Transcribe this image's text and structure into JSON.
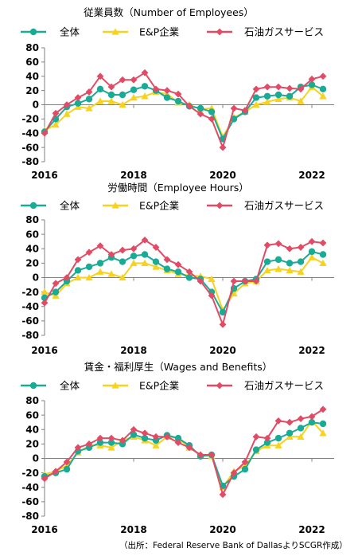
{
  "source_note": "（出所：Federal Reserve Bank of DallasよりSCGR作成）",
  "colors": {
    "all": "#1aab96",
    "ep": "#f7d21e",
    "oil": "#e24b65"
  },
  "chart_data": [
    {
      "type": "line",
      "title": "従業員数（Number of Employees）",
      "ylim": [
        -80,
        80
      ],
      "yticks": [
        "80",
        "60",
        "40",
        "20",
        "0",
        "-20",
        "-40",
        "-60",
        "-80"
      ],
      "xticks": [
        "2016",
        "2018",
        "2020",
        "2022"
      ],
      "x_range": [
        2016.0,
        2022.5
      ],
      "x": [
        2016.0,
        2016.25,
        2016.5,
        2016.75,
        2017.0,
        2017.25,
        2017.5,
        2017.75,
        2018.0,
        2018.25,
        2018.5,
        2018.75,
        2019.0,
        2019.25,
        2019.5,
        2019.75,
        2020.0,
        2020.25,
        2020.5,
        2020.75,
        2021.0,
        2021.25,
        2021.5,
        2021.75,
        2022.0,
        2022.25
      ],
      "series": [
        {
          "name": "全体",
          "key": "all",
          "marker": "circle",
          "values": [
            -38,
            -20,
            -3,
            2,
            8,
            22,
            14,
            14,
            21,
            26,
            20,
            10,
            5,
            -2,
            -5,
            -10,
            -48,
            -20,
            -10,
            10,
            12,
            14,
            12,
            25,
            28,
            22
          ]
        },
        {
          "name": "E&P企業",
          "key": "ep",
          "marker": "triangle",
          "values": [
            -36,
            -28,
            -13,
            -3,
            -5,
            5,
            5,
            0,
            10,
            12,
            18,
            15,
            3,
            0,
            -6,
            -5,
            -45,
            -18,
            -10,
            0,
            4,
            8,
            10,
            5,
            25,
            12
          ]
        },
        {
          "name": "石油ガスサービス",
          "key": "oil",
          "marker": "diamond",
          "values": [
            -40,
            -12,
            0,
            10,
            18,
            40,
            25,
            35,
            35,
            45,
            22,
            20,
            15,
            -2,
            -13,
            -20,
            -60,
            -5,
            -8,
            22,
            25,
            25,
            23,
            22,
            36,
            40
          ]
        }
      ]
    },
    {
      "type": "line",
      "title": "労働時間（Employee Hours）",
      "ylim": [
        -80,
        80
      ],
      "yticks": [
        "80",
        "60",
        "40",
        "20",
        "0",
        "-20",
        "-40",
        "-60",
        "-80"
      ],
      "xticks": [
        "2016",
        "2018",
        "2020",
        "2022"
      ],
      "x_range": [
        2016.0,
        2022.5
      ],
      "x": [
        2016.0,
        2016.25,
        2016.5,
        2016.75,
        2017.0,
        2017.25,
        2017.5,
        2017.75,
        2018.0,
        2018.25,
        2018.5,
        2018.75,
        2019.0,
        2019.25,
        2019.5,
        2019.75,
        2020.0,
        2020.25,
        2020.5,
        2020.75,
        2021.0,
        2021.25,
        2021.5,
        2021.75,
        2022.0,
        2022.25
      ],
      "series": [
        {
          "name": "全体",
          "key": "all",
          "marker": "circle",
          "values": [
            -28,
            -20,
            -5,
            10,
            15,
            20,
            28,
            22,
            30,
            32,
            22,
            12,
            8,
            0,
            -2,
            -20,
            -48,
            -15,
            -5,
            -2,
            22,
            25,
            20,
            22,
            36,
            32
          ]
        },
        {
          "name": "E&P企業",
          "key": "ep",
          "marker": "triangle",
          "values": [
            -20,
            -25,
            -8,
            0,
            0,
            8,
            5,
            0,
            20,
            20,
            15,
            10,
            5,
            3,
            2,
            -2,
            -45,
            -22,
            -8,
            -5,
            10,
            12,
            10,
            8,
            28,
            20
          ]
        },
        {
          "name": "石油ガスサービス",
          "key": "oil",
          "marker": "diamond",
          "values": [
            -35,
            -8,
            0,
            25,
            35,
            44,
            32,
            38,
            40,
            52,
            42,
            25,
            18,
            8,
            -5,
            -25,
            -65,
            -5,
            -5,
            -5,
            45,
            47,
            40,
            42,
            50,
            48
          ]
        }
      ]
    },
    {
      "type": "line",
      "title": "賃金・福利厚生（Wages and Benefits）",
      "ylim": [
        -80,
        80
      ],
      "yticks": [
        "80",
        "60",
        "40",
        "20",
        "0",
        "-20",
        "-40",
        "-60",
        "-80"
      ],
      "xticks": [
        "2016",
        "2018",
        "2020",
        "2022"
      ],
      "x_range": [
        2016.0,
        2022.5
      ],
      "x": [
        2016.0,
        2016.25,
        2016.5,
        2016.75,
        2017.0,
        2017.25,
        2017.5,
        2017.75,
        2018.0,
        2018.25,
        2018.5,
        2018.75,
        2019.0,
        2019.25,
        2019.5,
        2019.75,
        2020.0,
        2020.25,
        2020.5,
        2020.75,
        2021.0,
        2021.25,
        2021.5,
        2021.75,
        2022.0,
        2022.25
      ],
      "series": [
        {
          "name": "全体",
          "key": "all",
          "marker": "circle",
          "values": [
            -25,
            -20,
            -15,
            10,
            15,
            22,
            22,
            20,
            33,
            28,
            25,
            32,
            28,
            18,
            3,
            5,
            -38,
            -25,
            -15,
            12,
            22,
            28,
            35,
            42,
            50,
            48
          ]
        },
        {
          "name": "E&P企業",
          "key": "ep",
          "marker": "triangle",
          "values": [
            -22,
            -18,
            -10,
            8,
            18,
            18,
            15,
            25,
            30,
            25,
            18,
            30,
            28,
            15,
            5,
            3,
            -40,
            -18,
            -10,
            10,
            18,
            18,
            30,
            30,
            52,
            35
          ]
        },
        {
          "name": "石油ガスサービス",
          "key": "oil",
          "marker": "diamond",
          "values": [
            -28,
            -18,
            -5,
            15,
            20,
            28,
            28,
            25,
            40,
            35,
            30,
            30,
            22,
            15,
            5,
            5,
            -50,
            -20,
            -5,
            30,
            28,
            52,
            50,
            55,
            58,
            68
          ]
        }
      ]
    }
  ]
}
